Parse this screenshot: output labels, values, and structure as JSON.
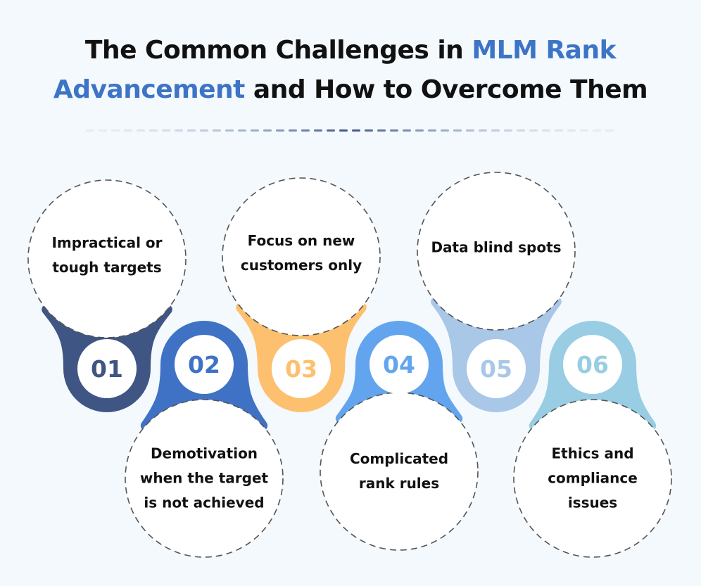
{
  "title": {
    "part1": "The Common Challenges in ",
    "highlight": "MLM Rank Advancement",
    "part2": " and How to Overcome Them"
  },
  "colors": {
    "background": "#f3f9fd",
    "highlight": "#3d74c6"
  },
  "items": [
    {
      "number": "01",
      "label": "Impractical or tough targets",
      "color": "#3f5584",
      "position": "top"
    },
    {
      "number": "02",
      "label": "Demotivation when the target is not achieved",
      "color": "#3f72c4",
      "position": "bottom"
    },
    {
      "number": "03",
      "label": "Focus on new customers only",
      "color": "#fdc06e",
      "position": "top"
    },
    {
      "number": "04",
      "label": "Complicated rank rules",
      "color": "#62a5ee",
      "position": "bottom"
    },
    {
      "number": "05",
      "label": "Data blind spots",
      "color": "#a9c7e6",
      "position": "top"
    },
    {
      "number": "06",
      "label": "Ethics and compliance issues",
      "color": "#98cde3",
      "position": "bottom"
    }
  ]
}
